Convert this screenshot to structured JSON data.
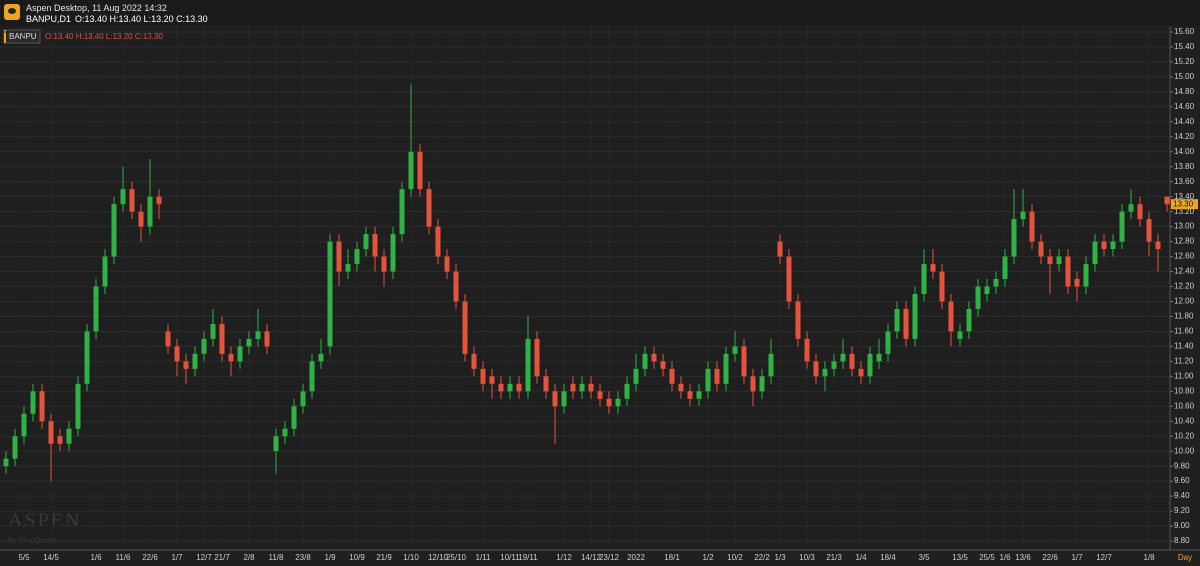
{
  "window": {
    "title": "Aspen Desktop, 11 Aug 2022 14:32",
    "symbol": "BANPU,D1",
    "ohlc": "O:13.40 H:13.40 L:13.20 C:13.30"
  },
  "chart_data": {
    "type": "candlestick",
    "symbol_label": "BANPU",
    "ohlc_label": "O:13.40 H:13.40 L:13.20 C:13.30",
    "watermark": "ASPEN",
    "watermark_sub": "by ThaiQuest",
    "timeframe": "Day",
    "up_color": "#2fb344",
    "down_color": "#e5533d",
    "grid": true,
    "ylim": [
      8.68,
      15.68
    ],
    "yticks": [
      {
        "value": 8.8,
        "label": "8.80"
      },
      {
        "value": 9,
        "label": "9.00"
      },
      {
        "value": 9.2,
        "label": "9.20"
      },
      {
        "value": 9.4,
        "label": "9.40"
      },
      {
        "value": 9.6,
        "label": "9.60"
      },
      {
        "value": 9.8,
        "label": "9.80"
      },
      {
        "value": 10,
        "label": "10.00"
      },
      {
        "value": 10.2,
        "label": "10.20"
      },
      {
        "value": 10.4,
        "label": "10.40"
      },
      {
        "value": 10.6,
        "label": "10.60"
      },
      {
        "value": 10.8,
        "label": "10.80"
      },
      {
        "value": 11,
        "label": "11.00"
      },
      {
        "value": 11.2,
        "label": "11.20"
      },
      {
        "value": 11.4,
        "label": "11.40"
      },
      {
        "value": 11.6,
        "label": "11.60"
      },
      {
        "value": 11.8,
        "label": "11.80"
      },
      {
        "value": 12,
        "label": "12.00"
      },
      {
        "value": 12.2,
        "label": "12.20"
      },
      {
        "value": 12.4,
        "label": "12.40"
      },
      {
        "value": 12.6,
        "label": "12.60"
      },
      {
        "value": 12.8,
        "label": "12.80"
      },
      {
        "value": 13,
        "label": "13.00"
      },
      {
        "value": 13.2,
        "label": "13.20"
      },
      {
        "value": 13.4,
        "label": "13.40"
      },
      {
        "value": 13.6,
        "label": "13.60"
      },
      {
        "value": 13.8,
        "label": "13.80"
      },
      {
        "value": 14,
        "label": "14.00"
      },
      {
        "value": 14.2,
        "label": "14.20"
      },
      {
        "value": 14.4,
        "label": "14.40"
      },
      {
        "value": 14.6,
        "label": "14.60"
      },
      {
        "value": 14.8,
        "label": "14.80"
      },
      {
        "value": 15,
        "label": "15.00"
      },
      {
        "value": 15.2,
        "label": "15.20"
      },
      {
        "value": 15.4,
        "label": "15.40"
      },
      {
        "value": 15.6,
        "label": "15.60"
      }
    ],
    "last_price": {
      "value": 13.3,
      "label": "13.30"
    },
    "categories": [
      null,
      null,
      "5/5",
      null,
      null,
      "14/5",
      null,
      null,
      null,
      null,
      "1/6",
      null,
      null,
      "11/6",
      null,
      null,
      "22/6",
      null,
      null,
      "1/7",
      null,
      null,
      "12/7",
      null,
      "21/7",
      null,
      null,
      "2/8",
      null,
      null,
      "11/8",
      null,
      null,
      "23/8",
      null,
      null,
      "1/9",
      null,
      null,
      "10/9",
      null,
      null,
      "21/9",
      null,
      null,
      "1/10",
      null,
      null,
      "12/10",
      null,
      "25/10",
      null,
      null,
      "1/11",
      null,
      null,
      "10/11",
      null,
      "19/11",
      null,
      null,
      null,
      "1/12",
      null,
      null,
      "14/12",
      null,
      "23/12",
      null,
      null,
      "2022",
      null,
      null,
      null,
      "18/1",
      null,
      null,
      null,
      "1/2",
      null,
      null,
      "10/2",
      null,
      null,
      "22/2",
      null,
      "1/3",
      null,
      null,
      "10/3",
      null,
      null,
      "21/3",
      null,
      null,
      "1/4",
      null,
      null,
      "18/4",
      null,
      null,
      null,
      "3/5",
      null,
      null,
      null,
      "13/5",
      null,
      null,
      "25/5",
      null,
      "1/6",
      null,
      "13/6",
      null,
      null,
      "22/6",
      null,
      null,
      "1/7",
      null,
      null,
      "12/7",
      null,
      null,
      null,
      null,
      "1/8",
      null,
      null
    ],
    "open": [
      9.8,
      9.9,
      10.2,
      10.5,
      10.8,
      10.4,
      10.2,
      10.1,
      10.3,
      10.9,
      11.6,
      12.2,
      12.6,
      13.3,
      13.5,
      13.2,
      13.0,
      13.4,
      11.6,
      11.4,
      11.2,
      11.1,
      11.3,
      11.5,
      11.7,
      11.3,
      11.2,
      11.4,
      11.5,
      11.6,
      10.0,
      10.2,
      10.3,
      10.6,
      10.8,
      11.2,
      11.4,
      12.8,
      12.4,
      12.5,
      12.7,
      12.9,
      12.6,
      12.4,
      12.9,
      13.5,
      14.0,
      13.5,
      13.0,
      12.6,
      12.4,
      12.0,
      11.3,
      11.1,
      11.0,
      10.9,
      10.8,
      10.9,
      10.8,
      11.5,
      11.0,
      10.8,
      10.6,
      10.9,
      10.8,
      10.9,
      10.8,
      10.7,
      10.6,
      10.7,
      10.9,
      11.1,
      11.3,
      11.2,
      11.1,
      10.9,
      10.8,
      10.7,
      10.8,
      11.1,
      10.9,
      11.3,
      11.4,
      11.0,
      10.8,
      11.0,
      12.8,
      12.6,
      12.0,
      11.5,
      11.2,
      11.0,
      11.1,
      11.2,
      11.3,
      11.1,
      11.0,
      11.2,
      11.3,
      11.6,
      11.9,
      11.5,
      12.1,
      12.5,
      12.4,
      12.0,
      11.5,
      11.6,
      11.9,
      12.1,
      12.2,
      12.3,
      12.6,
      13.1,
      13.2,
      12.8,
      12.6,
      12.5,
      12.6,
      12.3,
      12.2,
      12.5,
      12.8,
      12.7,
      12.8,
      13.2,
      13.3,
      13.1,
      12.8,
      13.4
    ],
    "high": [
      10.0,
      10.3,
      10.6,
      10.9,
      10.9,
      10.5,
      10.3,
      10.4,
      11.0,
      11.7,
      12.3,
      12.7,
      13.4,
      13.8,
      13.6,
      13.3,
      13.9,
      13.5,
      11.7,
      11.5,
      11.3,
      11.4,
      11.6,
      11.9,
      11.8,
      11.4,
      11.5,
      11.6,
      11.9,
      11.7,
      10.3,
      10.4,
      10.7,
      10.9,
      11.3,
      11.5,
      12.9,
      12.9,
      12.7,
      12.8,
      13.0,
      13.0,
      12.7,
      13.0,
      13.6,
      14.9,
      14.1,
      13.6,
      13.1,
      12.7,
      12.5,
      12.1,
      11.4,
      11.2,
      11.1,
      11.0,
      11.0,
      11.0,
      11.8,
      11.6,
      11.1,
      10.9,
      10.9,
      11.0,
      11.0,
      11.0,
      10.9,
      10.8,
      10.8,
      11.0,
      11.3,
      11.4,
      11.4,
      11.3,
      11.2,
      11.0,
      10.9,
      10.9,
      11.2,
      11.2,
      11.4,
      11.6,
      11.5,
      11.1,
      11.1,
      11.5,
      12.9,
      12.7,
      12.1,
      11.6,
      11.3,
      11.2,
      11.3,
      11.5,
      11.4,
      11.2,
      11.4,
      11.5,
      11.7,
      12.0,
      12.0,
      12.2,
      12.7,
      12.7,
      12.5,
      12.1,
      11.7,
      12.0,
      12.3,
      12.3,
      12.4,
      12.7,
      13.5,
      13.5,
      13.3,
      12.9,
      12.7,
      12.7,
      12.7,
      12.4,
      12.6,
      12.9,
      12.9,
      12.9,
      13.3,
      13.5,
      13.4,
      13.2,
      12.9,
      13.4
    ],
    "low": [
      9.7,
      9.8,
      10.1,
      10.4,
      10.3,
      9.6,
      10.0,
      10.0,
      10.2,
      10.8,
      11.5,
      12.1,
      12.5,
      13.2,
      13.1,
      12.8,
      12.9,
      13.1,
      11.3,
      11.0,
      10.9,
      11.0,
      11.2,
      11.4,
      11.2,
      11.0,
      11.1,
      11.3,
      11.4,
      11.3,
      9.7,
      10.1,
      10.2,
      10.5,
      10.7,
      11.1,
      11.3,
      12.2,
      12.3,
      12.4,
      12.6,
      12.4,
      12.2,
      12.3,
      12.8,
      13.4,
      13.4,
      12.9,
      12.5,
      12.3,
      11.9,
      11.2,
      11.0,
      10.8,
      10.7,
      10.7,
      10.7,
      10.7,
      10.7,
      10.9,
      10.7,
      10.1,
      10.5,
      10.7,
      10.7,
      10.7,
      10.6,
      10.5,
      10.5,
      10.6,
      10.8,
      11.0,
      11.1,
      11.0,
      10.8,
      10.7,
      10.6,
      10.6,
      10.7,
      10.8,
      10.8,
      11.2,
      10.9,
      10.6,
      10.7,
      10.9,
      12.5,
      11.9,
      11.4,
      11.1,
      10.9,
      10.8,
      11.0,
      11.1,
      11.0,
      10.9,
      10.9,
      11.1,
      11.2,
      11.5,
      11.4,
      11.4,
      12.0,
      12.3,
      11.9,
      11.4,
      11.4,
      11.5,
      11.8,
      12.0,
      12.1,
      12.2,
      12.5,
      13.0,
      12.7,
      12.5,
      12.1,
      12.4,
      12.1,
      12.0,
      12.1,
      12.4,
      12.6,
      12.6,
      12.7,
      13.1,
      13.0,
      12.6,
      12.4,
      13.2
    ],
    "close": [
      9.9,
      10.2,
      10.5,
      10.8,
      10.4,
      10.1,
      10.1,
      10.3,
      10.9,
      11.6,
      12.2,
      12.6,
      13.3,
      13.5,
      13.2,
      13.0,
      13.4,
      13.3,
      11.4,
      11.2,
      11.1,
      11.3,
      11.5,
      11.7,
      11.3,
      11.2,
      11.4,
      11.5,
      11.6,
      11.4,
      10.2,
      10.3,
      10.6,
      10.8,
      11.2,
      11.3,
      12.8,
      12.4,
      12.5,
      12.7,
      12.9,
      12.6,
      12.4,
      12.9,
      13.5,
      14.0,
      13.5,
      13.0,
      12.6,
      12.4,
      12.0,
      11.3,
      11.1,
      10.9,
      10.9,
      10.8,
      10.9,
      10.8,
      11.5,
      11.0,
      10.8,
      10.6,
      10.8,
      10.8,
      10.9,
      10.8,
      10.7,
      10.6,
      10.7,
      10.9,
      11.1,
      11.3,
      11.2,
      11.1,
      10.9,
      10.8,
      10.7,
      10.8,
      11.1,
      10.9,
      11.3,
      11.4,
      11.0,
      10.8,
      11.0,
      11.3,
      12.6,
      12.0,
      11.5,
      11.2,
      11.0,
      11.1,
      11.2,
      11.3,
      11.1,
      11.0,
      11.3,
      11.3,
      11.6,
      11.9,
      11.5,
      12.1,
      12.5,
      12.4,
      12.0,
      11.6,
      11.6,
      11.9,
      12.2,
      12.2,
      12.3,
      12.6,
      13.1,
      13.2,
      12.8,
      12.6,
      12.5,
      12.6,
      12.2,
      12.2,
      12.5,
      12.8,
      12.7,
      12.8,
      13.2,
      13.3,
      13.1,
      12.8,
      12.7,
      13.3
    ]
  }
}
